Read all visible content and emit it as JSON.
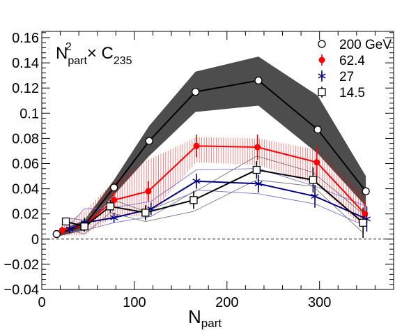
{
  "chart_data": {
    "type": "line",
    "title_main": "N",
    "title_sup": "2",
    "title_sub": "part",
    "title_times": "× C",
    "title_sub2": "235",
    "xlabel_main": "N",
    "xlabel_sub": "part",
    "ylabel": "",
    "xlim": [
      0,
      380
    ],
    "ylim": [
      -0.04,
      0.165
    ],
    "x_ticks": [
      0,
      100,
      200,
      300
    ],
    "x_tick_labels": [
      "0",
      "100",
      "200",
      "300"
    ],
    "y_ticks": [
      -0.04,
      -0.02,
      0,
      0.02,
      0.04,
      0.06,
      0.08,
      0.1,
      0.12,
      0.14,
      0.16
    ],
    "y_tick_labels": [
      "−0.04",
      "−0.02",
      "0",
      "0.02",
      "0.04",
      "0.06",
      "0.08",
      "0.1",
      "0.12",
      "0.14",
      "0.16"
    ],
    "zero_line": true,
    "legend_position": "top-right",
    "series": [
      {
        "name": "200 GeV",
        "color": "#000000",
        "marker": "open-circle",
        "x": [
          16,
          46,
          78,
          116,
          166,
          234,
          298,
          350
        ],
        "y": [
          0.004,
          0.011,
          0.041,
          0.078,
          0.117,
          0.126,
          0.087,
          0.038
        ],
        "band_low": [
          0.002,
          0.007,
          0.035,
          0.066,
          0.101,
          0.106,
          0.068,
          0.026
        ],
        "band_high": [
          0.006,
          0.015,
          0.047,
          0.09,
          0.133,
          0.145,
          0.114,
          0.05
        ],
        "band_color": "#4d4d4d"
      },
      {
        "name": "62.4",
        "color": "#ff0000",
        "marker": "filled-circle",
        "x": [
          22,
          46,
          78,
          115,
          167,
          233,
          297,
          349
        ],
        "y": [
          0.007,
          0.011,
          0.031,
          0.038,
          0.074,
          0.073,
          0.061,
          0.02
        ],
        "err": [
          0.003,
          0.004,
          0.006,
          0.008,
          0.009,
          0.01,
          0.013,
          0.01
        ],
        "band_low": [
          0.003,
          0.003,
          0.018,
          0.018,
          0.061,
          0.059,
          0.043,
          0.008
        ],
        "band_high": [
          0.012,
          0.022,
          0.046,
          0.063,
          0.081,
          0.08,
          0.071,
          0.035
        ],
        "band_color": "#ff0000"
      },
      {
        "name": "27",
        "color": "#00008b",
        "marker": "star",
        "x": [
          30,
          46,
          78,
          118,
          167,
          234,
          295,
          351
        ],
        "y": [
          0.008,
          0.013,
          0.017,
          0.024,
          0.046,
          0.044,
          0.034,
          0.016
        ],
        "err": [
          0.003,
          0.004,
          0.004,
          0.005,
          0.006,
          0.007,
          0.009,
          0.01
        ],
        "band_low": [
          0.006,
          0.007,
          0.013,
          0.018,
          0.039,
          0.036,
          0.028,
          0.01
        ],
        "band_high": [
          0.011,
          0.024,
          0.025,
          0.03,
          0.055,
          0.056,
          0.042,
          0.026
        ],
        "band_color": "#6f6fe0"
      },
      {
        "name": "14.5",
        "color": "#000000",
        "marker": "open-square",
        "x": [
          26,
          46,
          74,
          112,
          164,
          232,
          293,
          347
        ],
        "y": [
          0.014,
          0.01,
          0.026,
          0.021,
          0.031,
          0.055,
          0.047,
          0.013
        ],
        "err": [
          0.003,
          0.004,
          0.005,
          0.006,
          0.007,
          0.007,
          0.01,
          0.012
        ],
        "band_low": [
          0.008,
          0.004,
          0.021,
          0.014,
          0.022,
          0.047,
          0.042,
          0.005
        ],
        "band_high": [
          0.017,
          0.015,
          0.032,
          0.022,
          0.037,
          0.066,
          0.053,
          0.02
        ],
        "band_color": "#777777"
      }
    ]
  }
}
